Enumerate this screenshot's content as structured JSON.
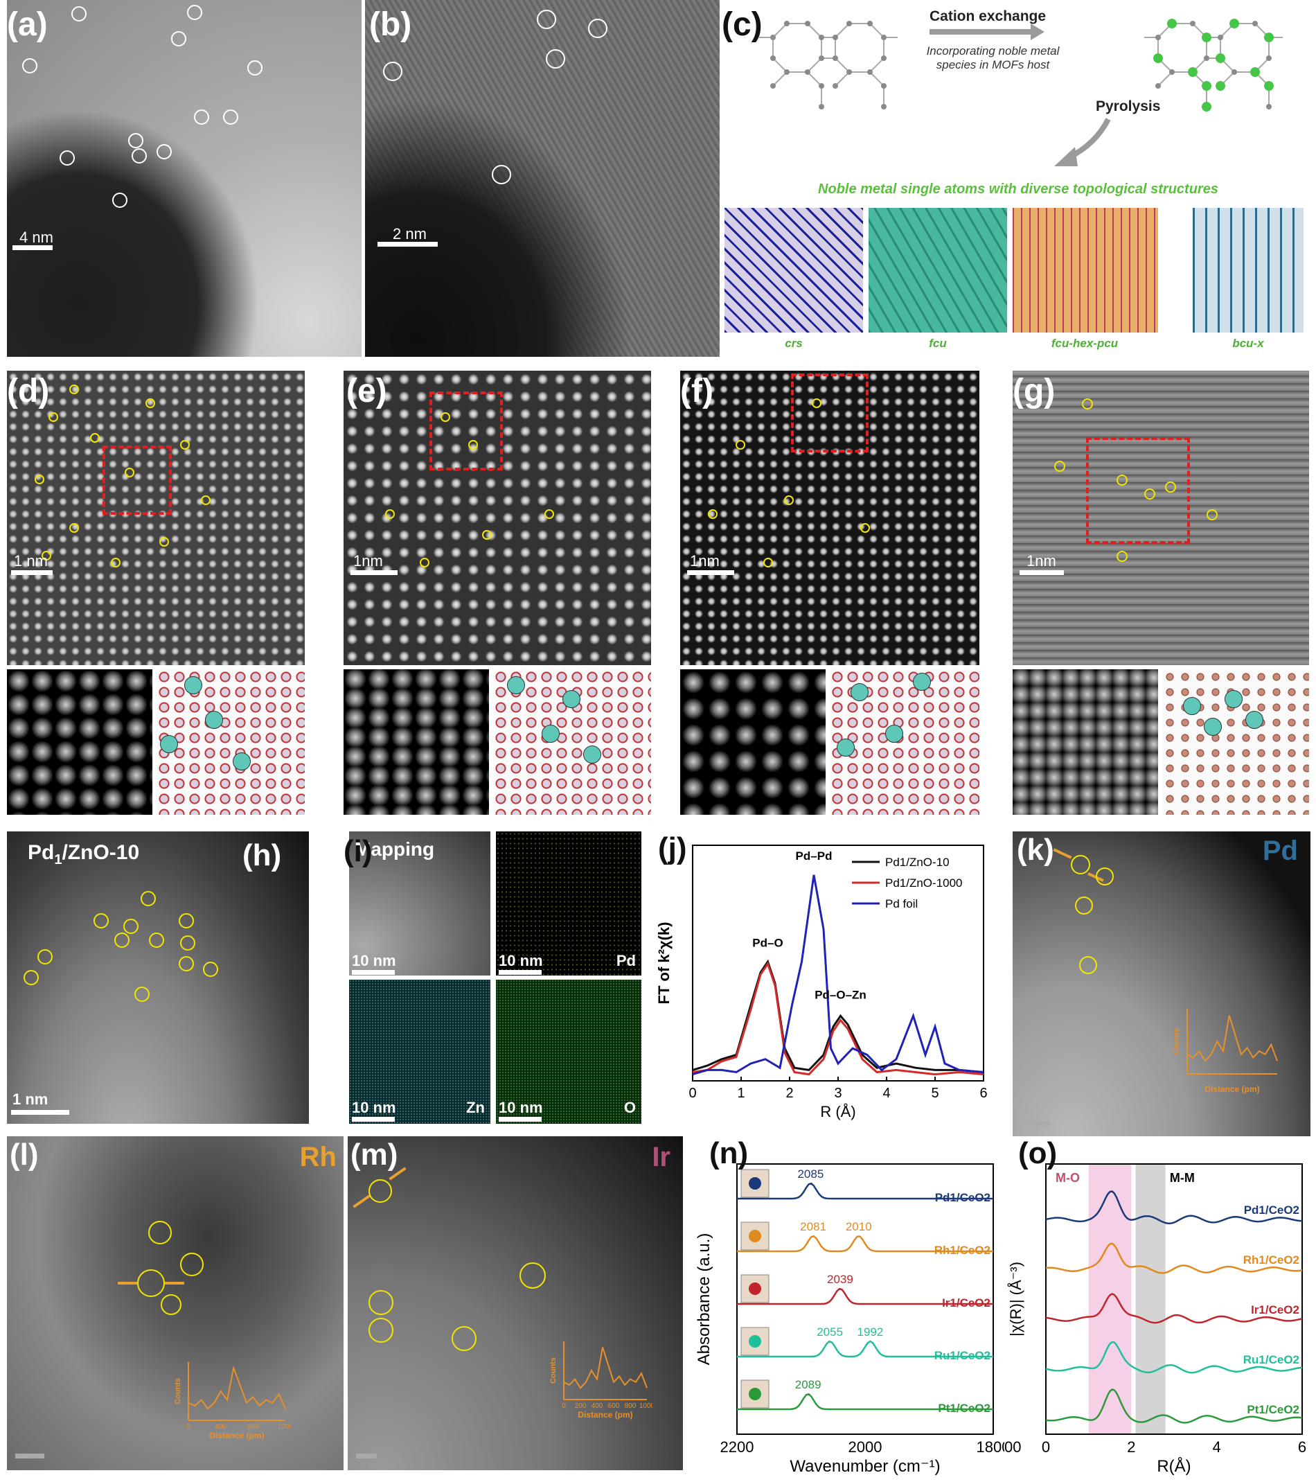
{
  "labels": {
    "a": "(a)",
    "b": "(b)",
    "c": "(c)",
    "d": "(d)",
    "e": "(e)",
    "f": "(f)",
    "g": "(g)",
    "h": "(h)",
    "i": "(i)",
    "j": "(j)",
    "k": "(k)",
    "l": "(l)",
    "m": "(m)",
    "n": "(n)",
    "o": "(o)"
  },
  "scalebars": {
    "a": "4 nm",
    "b": "2 nm",
    "d": "1 nm",
    "e": "1nm",
    "f": "1nm",
    "g": "1nm",
    "h": "1 nm",
    "i": "10 nm"
  },
  "panel_c": {
    "arrow1": "Cation exchange",
    "arrow1_sub": "Incorporating noble metal species in MOFs host",
    "arrow2": "Pyrolysis",
    "banner": "Noble metal single atoms with diverse topological structures",
    "topologies": [
      "crs",
      "fcu",
      "fcu-hex-pcu",
      "bcu-x"
    ]
  },
  "panel_h": {
    "title": "Pd",
    "title_sub": "1",
    "title_rest": "/ZnO-10"
  },
  "panel_i": {
    "title": "Mapping",
    "elements": [
      "Pd",
      "Zn",
      "O"
    ]
  },
  "panel_k": {
    "element": "Pd",
    "inset_ylabel": "Counts",
    "inset_xlabel": "Distance (pm)"
  },
  "panel_l": {
    "element": "Rh",
    "inset_ylabel": "Counts",
    "inset_xlabel": "Distance (pm)",
    "inset_ticks": [
      "0",
      "400",
      "800",
      "1200"
    ]
  },
  "panel_m": {
    "element": "Ir",
    "inset_ylabel": "Counts",
    "inset_xlabel": "Distance (pm)",
    "inset_ticks": [
      "0",
      "200",
      "400",
      "600",
      "800",
      "1000"
    ]
  },
  "colors": {
    "pd_zno_10": "#111111",
    "pd_zno_1000": "#d42a2a",
    "pd_foil": "#1f22b5",
    "pd_ceo2": "#1a3a7a",
    "rh_ceo2": "#e08a1e",
    "ir_ceo2": "#c0242c",
    "ru_ceo2": "#1fbf9a",
    "pt_ceo2": "#2a9a3a",
    "orange_inset": "#e8902a"
  },
  "chart_data": [
    {
      "panel": "j",
      "type": "line",
      "xlabel": "R (Å)",
      "ylabel": "FT of k²χ(k)",
      "xlim": [
        0,
        6
      ],
      "xticks": [
        "0",
        "1",
        "2",
        "3",
        "4",
        "5",
        "6"
      ],
      "annotations": [
        "Pd–O",
        "Pd–Pd",
        "Pd–O–Zn"
      ],
      "series": [
        {
          "name": "Pd1/ZnO-10",
          "x": [
            0.0,
            0.3,
            0.6,
            0.9,
            1.2,
            1.4,
            1.55,
            1.7,
            1.9,
            2.1,
            2.4,
            2.7,
            2.9,
            3.05,
            3.2,
            3.5,
            3.8,
            4.2,
            4.6,
            5.0,
            5.5,
            6.0
          ],
          "y": [
            0.05,
            0.07,
            0.1,
            0.12,
            0.35,
            0.5,
            0.55,
            0.45,
            0.15,
            0.06,
            0.05,
            0.12,
            0.25,
            0.3,
            0.26,
            0.12,
            0.06,
            0.08,
            0.06,
            0.05,
            0.05,
            0.04
          ]
        },
        {
          "name": "Pd1/ZnO-1000",
          "x": [
            0.0,
            0.3,
            0.6,
            0.9,
            1.2,
            1.4,
            1.55,
            1.7,
            1.9,
            2.1,
            2.4,
            2.7,
            2.9,
            3.05,
            3.2,
            3.5,
            3.8,
            4.2,
            4.6,
            5.0,
            5.5,
            6.0
          ],
          "y": [
            0.04,
            0.05,
            0.09,
            0.11,
            0.33,
            0.49,
            0.54,
            0.44,
            0.13,
            0.04,
            0.03,
            0.1,
            0.23,
            0.28,
            0.24,
            0.1,
            0.04,
            0.05,
            0.04,
            0.03,
            0.04,
            0.03
          ]
        },
        {
          "name": "Pd foil",
          "x": [
            0.0,
            0.3,
            0.6,
            0.9,
            1.2,
            1.5,
            1.8,
            2.05,
            2.25,
            2.5,
            2.7,
            2.85,
            3.0,
            3.3,
            3.6,
            3.9,
            4.2,
            4.55,
            4.8,
            5.0,
            5.2,
            5.5,
            6.0
          ],
          "y": [
            0.03,
            0.05,
            0.05,
            0.04,
            0.08,
            0.1,
            0.06,
            0.35,
            0.55,
            0.95,
            0.7,
            0.15,
            0.08,
            0.15,
            0.12,
            0.05,
            0.1,
            0.3,
            0.12,
            0.25,
            0.08,
            0.05,
            0.04
          ]
        }
      ]
    },
    {
      "panel": "n",
      "type": "line",
      "xlabel": "Wavenumber (cm⁻¹)",
      "ylabel": "Absorbance (a.u.)",
      "xlim": [
        2200,
        1800
      ],
      "xticks": [
        "2200",
        "2000",
        "1800"
      ],
      "series": [
        {
          "name": "Pd1/CeO2",
          "peaks": [
            "2085"
          ]
        },
        {
          "name": "Rh1/CeO2",
          "peaks": [
            "2081",
            "2010"
          ]
        },
        {
          "name": "Ir1/CeO2",
          "peaks": [
            "2039"
          ]
        },
        {
          "name": "Ru1/CeO2",
          "peaks": [
            "2055",
            "1992"
          ]
        },
        {
          "name": "Pt1/CeO2",
          "peaks": [
            "2089"
          ]
        }
      ]
    },
    {
      "panel": "o",
      "type": "line",
      "xlabel": "R(Å)",
      "ylabel": "|χ(R)| (Å⁻³)",
      "xlim": [
        0,
        6
      ],
      "xticks": [
        "0",
        "2",
        "4",
        "6"
      ],
      "regions": [
        "M-O",
        "M-M"
      ],
      "series": [
        {
          "name": "Pd1/CeO2"
        },
        {
          "name": "Rh1/CeO2"
        },
        {
          "name": "Ir1/CeO2"
        },
        {
          "name": "Ru1/CeO2"
        },
        {
          "name": "Pt1/CeO2"
        }
      ]
    }
  ],
  "stray_text": "00"
}
